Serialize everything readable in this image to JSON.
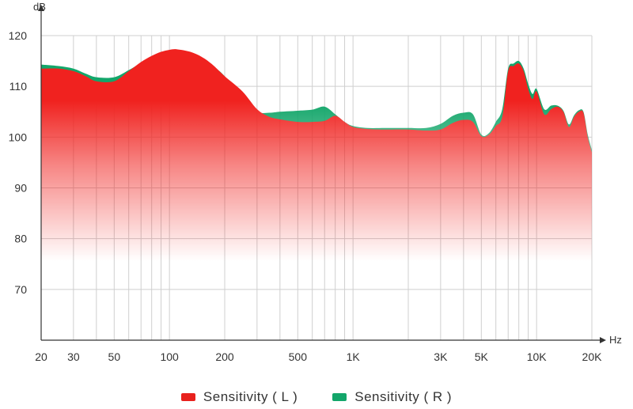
{
  "chart_data": {
    "type": "area",
    "xscale": "log",
    "xlim": [
      20,
      20000
    ],
    "ylim": [
      60,
      120
    ],
    "grid": true,
    "legend_position": "bottom",
    "y_unit": "dB",
    "x_unit": "Hz",
    "x_ticks": [
      {
        "value": 20,
        "label": "20"
      },
      {
        "value": 30,
        "label": "30"
      },
      {
        "value": 50,
        "label": "50"
      },
      {
        "value": 100,
        "label": "100"
      },
      {
        "value": 200,
        "label": "200"
      },
      {
        "value": 500,
        "label": "500"
      },
      {
        "value": 1000,
        "label": "1K"
      },
      {
        "value": 3000,
        "label": "3K"
      },
      {
        "value": 5000,
        "label": "5K"
      },
      {
        "value": 10000,
        "label": "10K"
      },
      {
        "value": 20000,
        "label": "20K"
      }
    ],
    "y_ticks": [
      {
        "value": 70,
        "label": "70"
      },
      {
        "value": 80,
        "label": "80"
      },
      {
        "value": 90,
        "label": "90"
      },
      {
        "value": 100,
        "label": "100"
      },
      {
        "value": 110,
        "label": "110"
      },
      {
        "value": 120,
        "label": "120"
      }
    ],
    "series": [
      {
        "name": "Sensitivity ( L )",
        "color": "#f0221f",
        "x": [
          20,
          25,
          30,
          35,
          40,
          50,
          60,
          70,
          80,
          90,
          100,
          110,
          130,
          150,
          170,
          200,
          250,
          300,
          350,
          400,
          500,
          600,
          700,
          800,
          900,
          1000,
          1200,
          1500,
          2000,
          2500,
          3000,
          3500,
          4000,
          4500,
          5000,
          5500,
          6000,
          6500,
          7000,
          7500,
          8000,
          8500,
          9000,
          9500,
          10000,
          11000,
          12000,
          13000,
          14000,
          15000,
          16000,
          17000,
          18000,
          19000,
          20000
        ],
        "y": [
          113.5,
          113.5,
          113,
          112,
          111,
          111,
          113,
          114.8,
          116,
          116.8,
          117.2,
          117.3,
          116.8,
          115.8,
          114.4,
          112,
          109,
          105.5,
          104,
          103.5,
          103,
          103,
          103.2,
          104.2,
          103,
          102,
          101.6,
          101.5,
          101.5,
          101.3,
          101.5,
          102.8,
          103.4,
          103,
          100.2,
          100.5,
          102.2,
          104,
          113,
          114,
          114.5,
          113,
          109.5,
          107.5,
          109,
          104.5,
          105.5,
          106,
          105,
          102,
          104,
          105,
          104.8,
          100,
          97
        ]
      },
      {
        "name": "Sensitivity ( R )",
        "color": "#13a66a",
        "x": [
          20,
          25,
          30,
          35,
          40,
          50,
          60,
          70,
          80,
          90,
          100,
          110,
          130,
          150,
          170,
          200,
          250,
          300,
          350,
          400,
          500,
          600,
          700,
          800,
          900,
          1000,
          1200,
          1500,
          2000,
          2500,
          3000,
          3500,
          4000,
          4500,
          5000,
          5500,
          6000,
          6500,
          7000,
          7500,
          8000,
          8500,
          9000,
          9500,
          10000,
          11000,
          12000,
          13000,
          14000,
          15000,
          16000,
          17000,
          18000,
          19000,
          20000
        ],
        "y": [
          114.3,
          114,
          113.5,
          112.5,
          111.8,
          111.8,
          113.2,
          114.6,
          115.8,
          116.5,
          117,
          117.1,
          116.6,
          115.6,
          114.2,
          112,
          107.5,
          105,
          104.8,
          105,
          105.2,
          105.4,
          106,
          104.5,
          103,
          102.2,
          101.8,
          101.8,
          101.8,
          101.8,
          102.6,
          104.2,
          104.8,
          104.5,
          100.5,
          100.8,
          103,
          105.5,
          113.5,
          114.5,
          115,
          113.5,
          110.5,
          108.5,
          109.5,
          105.5,
          106.2,
          106.2,
          105.2,
          102.5,
          104.3,
          105.3,
          105,
          100.5,
          97.5
        ]
      }
    ]
  }
}
